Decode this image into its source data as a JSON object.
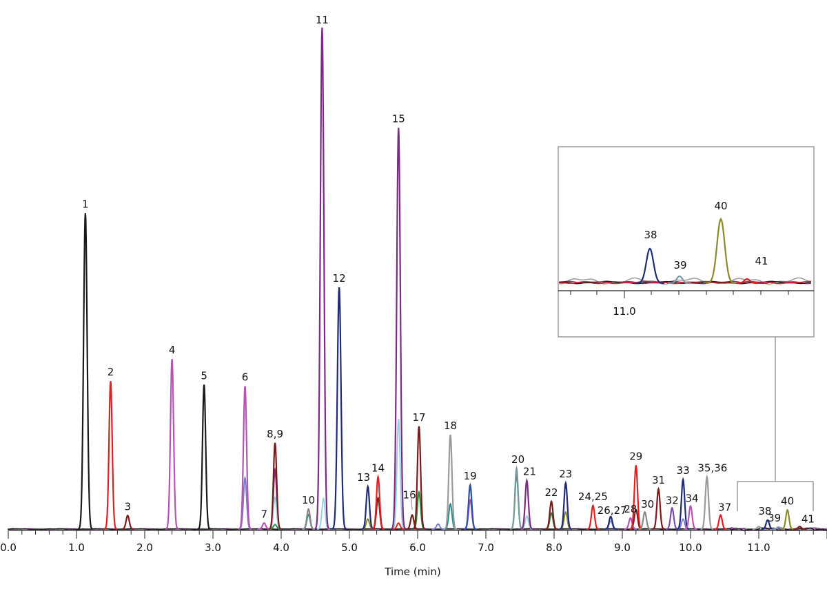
{
  "chart_data": {
    "type": "line",
    "xlabel": "Time (min)",
    "xlim": [
      0.0,
      12.0
    ],
    "ylim": [
      0,
      100
    ],
    "x_ticks": [
      "0.0",
      "1.0",
      "2.0",
      "3.0",
      "4.0",
      "5.0",
      "6.0",
      "7.0",
      "8.0",
      "9.0",
      "10.0",
      "11.0"
    ],
    "peaks": [
      {
        "label": "1",
        "x": 1.13,
        "y": 63.0,
        "color": "#1a1a1a"
      },
      {
        "label": "2",
        "x": 1.5,
        "y": 29.5,
        "color": "#e0201e"
      },
      {
        "label": "3",
        "x": 1.75,
        "y": 2.7,
        "color": "#7a1a1a"
      },
      {
        "label": "4",
        "x": 2.4,
        "y": 33.9,
        "color": "#b455b4"
      },
      {
        "label": "5",
        "x": 2.87,
        "y": 28.8,
        "color": "#1a1a1a"
      },
      {
        "label": "6",
        "x": 3.47,
        "y": 28.5,
        "color": "#b455b4"
      },
      {
        "label": "7",
        "x": 3.75,
        "y": 1.2,
        "color": "#b455b4"
      },
      {
        "label": "8,9",
        "x": 3.91,
        "y": 17.2,
        "color": "#7a1a1a"
      },
      {
        "label": "10",
        "x": 4.4,
        "y": 4.0,
        "color": "#888888"
      },
      {
        "label": "11",
        "x": 4.6,
        "y": 100.0,
        "color": "#7b2a86"
      },
      {
        "label": "12",
        "x": 4.85,
        "y": 48.2,
        "color": "#1f2a78"
      },
      {
        "label": "13",
        "x": 5.27,
        "y": 8.5,
        "color": "#1f2a78"
      },
      {
        "label": "14",
        "x": 5.42,
        "y": 10.4,
        "color": "#e0201e"
      },
      {
        "label": "15",
        "x": 5.72,
        "y": 80.0,
        "color": "#7b2a86"
      },
      {
        "label": "16",
        "x": 5.92,
        "y": 2.8,
        "color": "#7a1a1a"
      },
      {
        "label": "17",
        "x": 6.02,
        "y": 20.5,
        "color": "#7a1a1a"
      },
      {
        "label": "18",
        "x": 6.48,
        "y": 18.8,
        "color": "#9a9a9a"
      },
      {
        "label": "19",
        "x": 6.77,
        "y": 8.8,
        "color": "#2a4fb0"
      },
      {
        "label": "20",
        "x": 7.45,
        "y": 12.1,
        "color": "#7a9a9a"
      },
      {
        "label": "21",
        "x": 7.6,
        "y": 9.7,
        "color": "#7b2a86"
      },
      {
        "label": "22",
        "x": 7.96,
        "y": 5.5,
        "color": "#7a1a1a"
      },
      {
        "label": "23",
        "x": 8.17,
        "y": 9.2,
        "color": "#1f2a78"
      },
      {
        "label": "24,25",
        "x": 8.57,
        "y": 4.7,
        "color": "#e0201e"
      },
      {
        "label": "26,27",
        "x": 8.83,
        "y": 2.5,
        "color": "#1f2a78"
      },
      {
        "label": "28",
        "x": 9.12,
        "y": 2.2,
        "color": "#b455b4"
      },
      {
        "label": "29",
        "x": 9.2,
        "y": 12.7,
        "color": "#e0201e"
      },
      {
        "label": "30",
        "x": 9.33,
        "y": 3.4,
        "color": "#888888"
      },
      {
        "label": "31",
        "x": 9.53,
        "y": 8.0,
        "color": "#7a1a1a"
      },
      {
        "label": "32",
        "x": 9.73,
        "y": 4.2,
        "color": "#7b4fa8"
      },
      {
        "label": "33",
        "x": 9.89,
        "y": 9.9,
        "color": "#1f2a78"
      },
      {
        "label": "34",
        "x": 10.0,
        "y": 4.6,
        "color": "#b455b4"
      },
      {
        "label": "35,36",
        "x": 10.24,
        "y": 10.4,
        "color": "#9a9a9a"
      },
      {
        "label": "37",
        "x": 10.44,
        "y": 2.8,
        "color": "#e0201e"
      },
      {
        "label": "38",
        "x": 11.13,
        "y": 1.8,
        "color": "#1f2a78"
      },
      {
        "label": "39",
        "x": 11.29,
        "y": 0.4,
        "color": "#7a9aaa"
      },
      {
        "label": "40",
        "x": 11.42,
        "y": 3.8,
        "color": "#8a8a2a"
      },
      {
        "label": "41",
        "x": 11.6,
        "y": 0.5,
        "color": "#7a1a1a"
      }
    ],
    "shoulders": [
      {
        "x": 3.47,
        "y": 10.2,
        "color": "#7b7bd0"
      },
      {
        "x": 3.91,
        "y": 11.8,
        "color": "#7b2a86"
      },
      {
        "x": 3.91,
        "y": 6.3,
        "color": "#9ad0e0"
      },
      {
        "x": 3.91,
        "y": 0.9,
        "color": "#2a8a5a"
      },
      {
        "x": 4.4,
        "y": 2.9,
        "color": "#2a8a8a"
      },
      {
        "x": 4.62,
        "y": 6.1,
        "color": "#9ad0e0"
      },
      {
        "x": 5.27,
        "y": 2.0,
        "color": "#8a8a2a"
      },
      {
        "x": 5.42,
        "y": 6.2,
        "color": "#7a1a1a"
      },
      {
        "x": 5.72,
        "y": 22.0,
        "color": "#9ad0e0"
      },
      {
        "x": 5.72,
        "y": 1.2,
        "color": "#e0201e"
      },
      {
        "x": 6.02,
        "y": 7.4,
        "color": "#2a8a3a"
      },
      {
        "x": 6.48,
        "y": 5.0,
        "color": "#2a8a8a"
      },
      {
        "x": 6.3,
        "y": 1.0,
        "color": "#7b7bd0"
      },
      {
        "x": 6.77,
        "y": 5.8,
        "color": "#b455b4"
      },
      {
        "x": 7.45,
        "y": 10.9,
        "color": "#2a8a8a"
      },
      {
        "x": 7.6,
        "y": 2.6,
        "color": "#9ad0e0"
      },
      {
        "x": 7.96,
        "y": 3.2,
        "color": "#2a7a3a"
      },
      {
        "x": 8.17,
        "y": 3.4,
        "color": "#8a8a2a"
      },
      {
        "x": 8.83,
        "y": 1.6,
        "color": "#9a9a9a"
      },
      {
        "x": 9.2,
        "y": 3.9,
        "color": "#7a1a1a"
      },
      {
        "x": 9.89,
        "y": 2.0,
        "color": "#7b7bd0"
      },
      {
        "x": 11.0,
        "y": 0.5,
        "color": "#9a9a9a"
      }
    ],
    "inset": {
      "x_ticks": [
        "11.0"
      ],
      "peaks": [
        {
          "label": "38",
          "color": "#1f2a78"
        },
        {
          "label": "39",
          "color": "#7a9aaa"
        },
        {
          "label": "40",
          "color": "#8a8a2a"
        },
        {
          "label": "41",
          "color": "#7a1a1a"
        }
      ]
    },
    "grid": false,
    "legend": "none"
  }
}
